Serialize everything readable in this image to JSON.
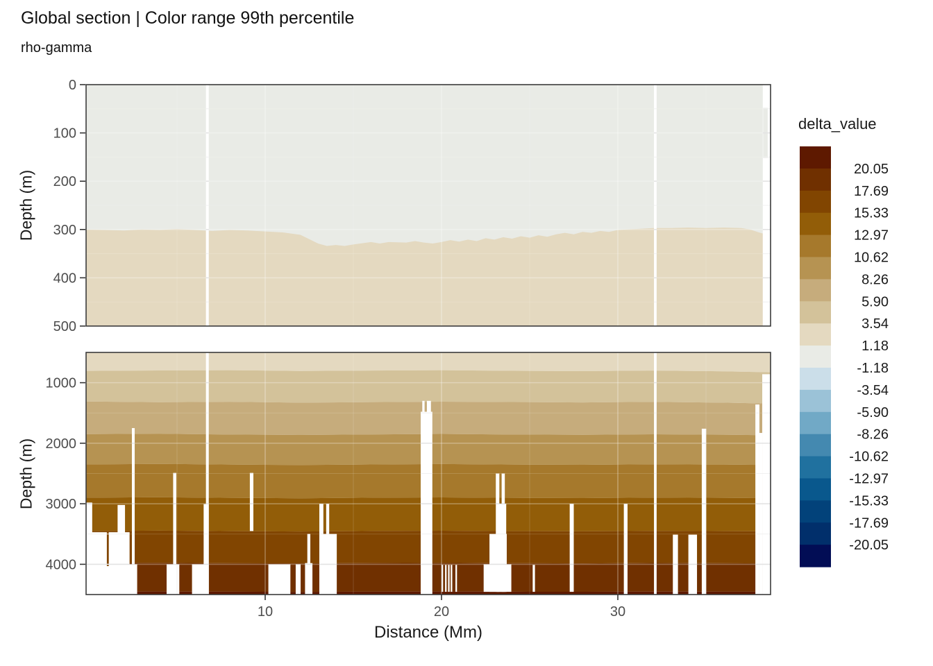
{
  "chart_data": {
    "type": "heatmap",
    "title": "Global section | Color range 99th percentile",
    "subtitle": "rho-gamma",
    "xlabel": "Distance (Mm)",
    "ylabel": "Depth (m)",
    "x_ticks": [
      10,
      20,
      30
    ],
    "x_range_mm": [
      -0.16,
      38.66
    ],
    "legend": {
      "title": "delta_value",
      "labels": [
        "20.05",
        "17.69",
        "15.33",
        "12.97",
        "10.62",
        "8.26",
        "5.90",
        "3.54",
        "1.18",
        "-1.18",
        "-3.54",
        "-5.90",
        "-8.26",
        "-10.62",
        "-12.97",
        "-15.33",
        "-17.69",
        "-20.05"
      ],
      "colors": [
        "#5E1900",
        "#703000",
        "#814501",
        "#925D08",
        "#A6792C",
        "#B69352",
        "#C6AC7C",
        "#D3C29A",
        "#E4D9C0",
        "#E9EBE6",
        "#CBDEE9",
        "#9BC2D7",
        "#71A9C6",
        "#4489B0",
        "#20719F",
        "#09588D",
        "#02427A",
        "#012F6B",
        "#020D55"
      ]
    },
    "panels": [
      {
        "id": "shallow",
        "depth_range_m": [
          0,
          500
        ],
        "y_ticks": [
          0,
          100,
          200,
          300,
          400,
          500
        ],
        "grid_minor_depths": [
          50,
          150,
          250,
          350,
          450
        ],
        "fill_above_boundary": "#E9EBE6",
        "fill_below_boundary": "#E4D9C0",
        "boundary_points": [
          [
            -0.16,
            300
          ],
          [
            1,
            301
          ],
          [
            2,
            302
          ],
          [
            3,
            300
          ],
          [
            4,
            301
          ],
          [
            5,
            299
          ],
          [
            6,
            301
          ],
          [
            7,
            303
          ],
          [
            8,
            301
          ],
          [
            9,
            302
          ],
          [
            10,
            304
          ],
          [
            11,
            306
          ],
          [
            12,
            311
          ],
          [
            12.5,
            320
          ],
          [
            13,
            329
          ],
          [
            13.5,
            334
          ],
          [
            14,
            332
          ],
          [
            14.5,
            334
          ],
          [
            15,
            331
          ],
          [
            16,
            326
          ],
          [
            16.5,
            329
          ],
          [
            17,
            326
          ],
          [
            18,
            327
          ],
          [
            18.5,
            324
          ],
          [
            19,
            327
          ],
          [
            19.5,
            329
          ],
          [
            20,
            326
          ],
          [
            20.5,
            322
          ],
          [
            21,
            325
          ],
          [
            21.5,
            321
          ],
          [
            22,
            324
          ],
          [
            22.5,
            318
          ],
          [
            23,
            321
          ],
          [
            23.5,
            316
          ],
          [
            24,
            319
          ],
          [
            24.5,
            314
          ],
          [
            25,
            317
          ],
          [
            25.5,
            312
          ],
          [
            26,
            315
          ],
          [
            26.5,
            310
          ],
          [
            27,
            307
          ],
          [
            27.5,
            310
          ],
          [
            28,
            305
          ],
          [
            28.5,
            307
          ],
          [
            29,
            303
          ],
          [
            29.5,
            305
          ],
          [
            30,
            301
          ],
          [
            31,
            299
          ],
          [
            32,
            297
          ],
          [
            33,
            297
          ],
          [
            34,
            296
          ],
          [
            35,
            297
          ],
          [
            36,
            296
          ],
          [
            37,
            297
          ],
          [
            37.5,
            300
          ],
          [
            38,
            306
          ],
          [
            38.3,
            309
          ],
          [
            38.66,
            302
          ]
        ],
        "gaps": [
          [
            6.64,
            6.8,
            0,
            500
          ],
          [
            32.05,
            32.2,
            0,
            500
          ],
          [
            38.22,
            38.66,
            0,
            500
          ]
        ],
        "needles": [
          [
            38.24,
            38.5,
            48,
            152,
            "#E9EBE6"
          ]
        ]
      },
      {
        "id": "deep",
        "depth_range_m": [
          500,
          4500
        ],
        "y_ticks": [
          1000,
          2000,
          3000,
          4000
        ],
        "grid_minor_depths": [
          500,
          1500,
          2500,
          3500
        ],
        "band_control_mm": [
          -0.16,
          4,
          8,
          12,
          16,
          20,
          24,
          28,
          32,
          36,
          38.66
        ],
        "band_boundaries_m": [
          [
            805,
            798,
            793,
            806,
            800,
            794,
            803,
            809,
            799,
            812,
            828
          ],
          [
            1310,
            1322,
            1315,
            1330,
            1321,
            1313,
            1320,
            1326,
            1316,
            1330,
            1345
          ],
          [
            1850,
            1843,
            1856,
            1864,
            1855,
            1847,
            1856,
            1861,
            1852,
            1860,
            1868
          ],
          [
            2350,
            2342,
            2352,
            2360,
            2351,
            2344,
            2352,
            2357,
            2348,
            2353,
            2360
          ],
          [
            2900,
            2893,
            2902,
            2909,
            2900,
            2895,
            2903,
            2907,
            2898,
            2903,
            2908
          ],
          [
            3450,
            3444,
            3452,
            3458,
            3450,
            3446,
            3452,
            3456,
            3448,
            3452,
            3456
          ],
          [
            3980,
            3976,
            3982,
            3986,
            3980,
            3977,
            3982,
            3985,
            3979,
            3982,
            3985
          ],
          [
            4452,
            4450,
            4453,
            4455,
            4452,
            4450,
            4453,
            4454,
            4451,
            4452,
            4453
          ]
        ],
        "band_colors": [
          "#E4D9C0",
          "#D3C29A",
          "#C6AC7C",
          "#B69352",
          "#A6792C",
          "#925D08",
          "#814501",
          "#703000",
          "#5E1900"
        ],
        "gaps": [
          [
            -0.16,
            0.19,
            2980,
            4500
          ],
          [
            1.63,
            2.05,
            3020,
            4500
          ],
          [
            -0.16,
            2.31,
            3470,
            4500
          ],
          [
            -0.16,
            2.74,
            4000,
            4500
          ],
          [
            2.44,
            2.6,
            1750,
            4500
          ],
          [
            4.78,
            4.96,
            2490,
            4500
          ],
          [
            4.41,
            5.13,
            4000,
            4500
          ],
          [
            6.51,
            6.8,
            3005,
            4500
          ],
          [
            5.85,
            6.8,
            4000,
            4500
          ],
          [
            6.64,
            6.8,
            500,
            4500
          ],
          [
            9.13,
            9.33,
            2490,
            3450
          ],
          [
            10.18,
            11.43,
            4000,
            4500
          ],
          [
            11.73,
            12.01,
            4000,
            4500
          ],
          [
            12.26,
            12.68,
            3980,
            4500
          ],
          [
            12.39,
            12.56,
            3500,
            4500
          ],
          [
            13.07,
            13.3,
            3000,
            4500
          ],
          [
            13.46,
            13.63,
            3000,
            4500
          ],
          [
            13.14,
            14.06,
            3500,
            4500
          ],
          [
            18.91,
            19.04,
            1300,
            4500
          ],
          [
            19.17,
            19.4,
            1300,
            4500
          ],
          [
            18.82,
            19.48,
            1480,
            4500
          ],
          [
            20.0,
            20.09,
            4010,
            4455
          ],
          [
            20.2,
            20.29,
            4010,
            4455
          ],
          [
            20.37,
            20.46,
            4010,
            4455
          ],
          [
            20.52,
            20.61,
            4010,
            4455
          ],
          [
            20.79,
            20.88,
            4010,
            4455
          ],
          [
            23.08,
            23.28,
            2500,
            4455
          ],
          [
            23.41,
            23.59,
            2500,
            4455
          ],
          [
            23.15,
            23.67,
            3000,
            4455
          ],
          [
            22.72,
            23.7,
            3500,
            4455
          ],
          [
            22.39,
            23.96,
            4000,
            4455
          ],
          [
            25.17,
            25.3,
            4010,
            4455
          ],
          [
            27.27,
            27.5,
            3000,
            4455
          ],
          [
            30.34,
            30.55,
            3000,
            4500
          ],
          [
            32.05,
            32.2,
            500,
            4500
          ],
          [
            33.12,
            33.41,
            3510,
            4500
          ],
          [
            34.0,
            34.49,
            3510,
            4500
          ],
          [
            34.76,
            35.01,
            1760,
            4500
          ],
          [
            37.8,
            38.03,
            1360,
            4500
          ],
          [
            38.03,
            38.19,
            1830,
            4500
          ],
          [
            38.19,
            38.66,
            860,
            4500
          ]
        ],
        "needles": [
          [
            1.02,
            1.13,
            3470,
            4030,
            "#814501"
          ]
        ]
      }
    ],
    "style": {
      "panel_border": "#3B3B3B",
      "tick_color": "#333333",
      "tick_label_color": "#4D4D4D",
      "grid_major_gap": "#E3E3E3",
      "grid_minor_gap": "#F0F0F0"
    }
  }
}
